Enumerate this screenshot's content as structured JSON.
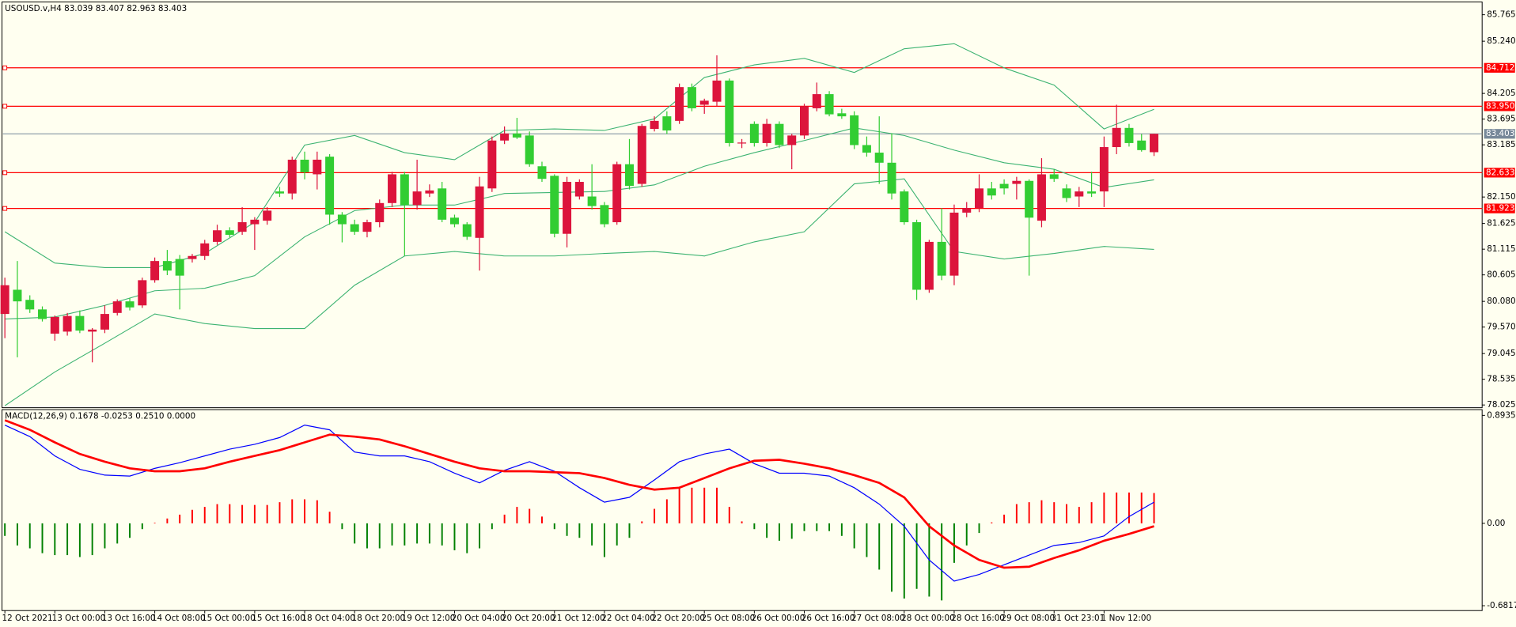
{
  "chart_data": [
    {
      "type": "candlestick",
      "title": "USOUSD.v,H4  83.039 83.407 82.963 83.403",
      "categories": [
        "12 Oct 2021",
        null,
        null,
        null,
        "13 Oct 00:00",
        null,
        null,
        null,
        "13 Oct 16:00",
        null,
        null,
        null,
        "14 Oct 08:00",
        null,
        null,
        null,
        "15 Oct 00:00",
        null,
        null,
        null,
        "15 Oct 16:00",
        null,
        null,
        null,
        "18 Oct 04:00",
        null,
        null,
        null,
        "18 Oct 20:00",
        null,
        null,
        null,
        "19 Oct 12:00",
        null,
        null,
        null,
        "20 Oct 04:00",
        null,
        null,
        null,
        "20 Oct 20:00",
        null,
        null,
        null,
        "21 Oct 12:00",
        null,
        null,
        null,
        "22 Oct 04:00",
        null,
        null,
        null,
        "22 Oct 20:00",
        null,
        null,
        null,
        "25 Oct 08:00",
        null,
        null,
        null,
        "26 Oct 00:00",
        null,
        null,
        null,
        "26 Oct 16:00",
        null,
        null,
        null,
        "27 Oct 08:00",
        null,
        null,
        null,
        "28 Oct 00:00",
        null,
        null,
        null,
        "28 Oct 16:00",
        null,
        null,
        null,
        "29 Oct 08:00",
        null,
        null,
        null,
        "31 Oct 23:01",
        null,
        null,
        null,
        "1 Nov 12:00",
        null,
        null,
        null,
        null
      ],
      "open": [
        79.83,
        80.31,
        80.11,
        79.92,
        79.44,
        79.48,
        79.79,
        79.48,
        79.52,
        79.85,
        80.08,
        80.0,
        80.5,
        80.88,
        80.92,
        80.92,
        80.98,
        81.26,
        81.49,
        81.46,
        81.61,
        81.68,
        82.26,
        82.22,
        82.89,
        82.6,
        82.95,
        81.8,
        81.61,
        81.46,
        81.65,
        82.03,
        82.6,
        81.99,
        82.22,
        82.32,
        81.74,
        81.61,
        81.34,
        82.32,
        83.27,
        83.41,
        83.37,
        82.76,
        82.57,
        81.42,
        82.16,
        82.16,
        81.99,
        81.65,
        82.8,
        82.41,
        83.5,
        83.75,
        83.66,
        84.33,
        83.98,
        84.04,
        84.46,
        83.22,
        83.6,
        83.22,
        83.6,
        83.18,
        83.37,
        83.91,
        84.19,
        83.81,
        83.77,
        83.18,
        83.03,
        82.83,
        82.26,
        81.65,
        80.31,
        81.26,
        80.59,
        81.84,
        81.93,
        82.32,
        82.41,
        82.41,
        82.47,
        81.68,
        82.6,
        82.32,
        82.16,
        82.26,
        82.26,
        83.14,
        83.52,
        83.27,
        83.039
      ],
      "high": [
        80.55,
        80.88,
        80.2,
        79.98,
        79.8,
        79.85,
        79.9,
        79.55,
        80.0,
        80.12,
        80.15,
        80.55,
        80.95,
        81.1,
        81.0,
        81.02,
        81.3,
        81.6,
        81.55,
        81.95,
        81.75,
        81.95,
        82.35,
        82.95,
        83.05,
        83.05,
        83.0,
        81.85,
        81.7,
        81.7,
        82.1,
        82.65,
        82.65,
        82.89,
        82.4,
        82.45,
        81.8,
        81.65,
        82.55,
        83.35,
        83.55,
        83.72,
        83.45,
        82.85,
        82.6,
        82.55,
        82.5,
        82.8,
        82.05,
        82.85,
        83.3,
        83.6,
        83.75,
        83.85,
        84.4,
        84.4,
        84.1,
        84.96,
        84.5,
        83.3,
        83.65,
        83.7,
        83.65,
        83.4,
        84.0,
        84.42,
        84.25,
        83.9,
        83.85,
        83.35,
        83.75,
        83.41,
        82.3,
        81.7,
        81.3,
        81.93,
        82.0,
        82.05,
        82.6,
        82.45,
        82.5,
        82.55,
        82.5,
        82.92,
        82.7,
        82.4,
        82.35,
        82.65,
        83.35,
        83.98,
        83.6,
        83.4,
        83.407
      ],
      "low": [
        79.35,
        78.97,
        79.85,
        79.68,
        79.3,
        79.4,
        79.45,
        78.87,
        79.45,
        79.8,
        79.9,
        79.95,
        80.45,
        80.6,
        79.92,
        80.85,
        80.9,
        81.2,
        81.35,
        81.4,
        81.1,
        81.6,
        82.15,
        82.1,
        82.5,
        82.3,
        81.6,
        81.25,
        81.4,
        81.35,
        81.55,
        81.95,
        80.98,
        81.9,
        82.15,
        81.65,
        81.55,
        81.3,
        80.69,
        82.25,
        83.2,
        83.3,
        82.75,
        82.45,
        81.35,
        81.15,
        82.1,
        81.9,
        81.55,
        81.6,
        82.3,
        82.35,
        83.45,
        83.4,
        83.6,
        83.85,
        83.8,
        83.95,
        83.15,
        83.12,
        83.15,
        83.15,
        83.12,
        82.7,
        83.3,
        83.85,
        83.75,
        83.7,
        83.1,
        82.95,
        82.41,
        82.1,
        81.6,
        80.11,
        80.25,
        80.5,
        80.4,
        81.75,
        81.85,
        82.1,
        82.2,
        82.1,
        80.59,
        81.55,
        82.45,
        82.05,
        81.95,
        82.15,
        81.95,
        83.0,
        83.15,
        83.05,
        82.963
      ],
      "close": [
        80.4,
        80.08,
        79.92,
        79.73,
        79.77,
        79.79,
        79.5,
        79.52,
        79.83,
        80.08,
        79.96,
        80.5,
        80.88,
        80.69,
        80.59,
        80.98,
        81.23,
        81.49,
        81.4,
        81.65,
        81.7,
        81.88,
        82.22,
        82.89,
        82.64,
        82.89,
        81.8,
        81.61,
        81.46,
        81.65,
        82.03,
        82.6,
        81.99,
        82.26,
        82.28,
        81.7,
        81.61,
        81.36,
        82.36,
        83.27,
        83.41,
        83.33,
        82.8,
        82.51,
        81.42,
        82.45,
        82.45,
        81.97,
        81.61,
        82.8,
        82.37,
        83.56,
        83.66,
        83.47,
        84.33,
        83.91,
        84.06,
        84.46,
        83.22,
        83.23,
        83.22,
        83.6,
        83.18,
        83.37,
        83.95,
        84.19,
        83.79,
        83.75,
        83.18,
        83.03,
        82.83,
        82.22,
        81.65,
        80.31,
        81.26,
        80.59,
        81.84,
        81.93,
        82.32,
        82.18,
        82.32,
        82.47,
        81.74,
        82.6,
        82.51,
        82.13,
        82.26,
        82.22,
        83.14,
        83.52,
        83.22,
        83.08,
        83.403
      ],
      "up_color": "#dc143c",
      "down_color": "#32cd32",
      "bands": {
        "color": "#3cb371",
        "x": [
          0,
          4,
          8,
          12,
          16,
          20,
          24,
          28,
          32,
          36,
          40,
          44,
          48,
          52,
          56,
          60,
          64,
          68,
          72,
          76,
          80,
          84,
          88,
          92
        ],
        "series": [
          {
            "values": [
              81.46,
              80.84,
              80.75,
              80.75,
              81.03,
              81.65,
              83.18,
              83.37,
              83.03,
              82.89,
              83.47,
              83.5,
              83.47,
              83.7,
              84.52,
              84.77,
              84.9,
              84.62,
              85.09,
              85.19,
              84.71,
              84.37,
              83.5,
              83.89
            ]
          },
          {
            "values": [
              79.73,
              79.77,
              80.0,
              80.29,
              80.34,
              80.59,
              81.36,
              81.88,
              81.99,
              81.99,
              82.22,
              82.24,
              82.26,
              82.39,
              82.76,
              83.03,
              83.27,
              83.52,
              83.37,
              83.08,
              82.83,
              82.7,
              82.34,
              82.49
            ]
          },
          {
            "values": [
              78.01,
              78.68,
              79.25,
              79.83,
              79.64,
              79.54,
              79.54,
              80.4,
              80.98,
              81.07,
              80.98,
              80.98,
              81.03,
              81.07,
              80.98,
              81.26,
              81.46,
              82.41,
              82.51,
              81.07,
              80.92,
              81.03,
              81.17,
              81.11
            ]
          }
        ]
      },
      "levels": [
        84.712,
        {
          "value": 83.95,
          "label": "83.950"
        },
        82.633,
        81.923
      ],
      "level_color": "#ff0000",
      "bid": 83.403,
      "bid_color": "#778899",
      "ylim": [
        77.99,
        86.0
      ],
      "yticks": [
        85.765,
        {
          "value": 85.24,
          "label": "85.240"
        },
        84.205,
        83.695,
        83.185,
        {
          "value": 82.15,
          "label": "82.150"
        },
        81.625,
        81.115,
        80.605,
        {
          "value": 80.08,
          "label": "80.080"
        },
        {
          "value": 79.57,
          "label": "79.570"
        },
        79.045,
        78.535,
        78.025
      ]
    },
    {
      "type": "macd",
      "title": "MACD(12,26,9) 0.1678 -0.0253 0.2510 0.0000",
      "histogram": [
        -0.104,
        -0.183,
        -0.207,
        -0.247,
        -0.263,
        -0.263,
        -0.279,
        -0.263,
        -0.207,
        -0.167,
        -0.12,
        -0.048,
        0.005,
        0.04,
        0.072,
        0.112,
        0.136,
        0.159,
        0.159,
        0.152,
        0.152,
        0.152,
        0.175,
        0.199,
        0.199,
        0.191,
        0.096,
        -0.048,
        -0.167,
        -0.207,
        -0.207,
        -0.183,
        -0.183,
        -0.167,
        -0.167,
        -0.183,
        -0.223,
        -0.247,
        -0.207,
        -0.048,
        0.072,
        0.136,
        0.12,
        0.056,
        -0.048,
        -0.104,
        -0.12,
        -0.183,
        -0.279,
        -0.183,
        -0.12,
        0.016,
        0.12,
        0.199,
        0.295,
        0.295,
        0.295,
        0.295,
        0.136,
        0.016,
        -0.048,
        -0.12,
        -0.144,
        -0.128,
        -0.064,
        -0.064,
        -0.064,
        -0.104,
        -0.207,
        -0.279,
        -0.383,
        -0.566,
        -0.622,
        -0.542,
        -0.606,
        -0.638,
        -0.327,
        -0.183,
        -0.08,
        0.008,
        0.072,
        0.159,
        0.175,
        0.191,
        0.175,
        0.159,
        0.136,
        0.175,
        0.255,
        0.255,
        0.255,
        0.255,
        0.251
      ],
      "pos_color": "#ff0000",
      "neg_color": "#008000",
      "x": [
        0,
        2,
        4,
        6,
        8,
        10,
        12,
        14,
        16,
        18,
        20,
        22,
        24,
        26,
        28,
        30,
        32,
        34,
        36,
        38,
        40,
        42,
        44,
        46,
        48,
        50,
        52,
        54,
        56,
        58,
        60,
        62,
        64,
        66,
        68,
        70,
        72,
        74,
        76,
        78,
        80,
        82,
        84,
        86,
        88,
        90,
        92
      ],
      "series": [
        {
          "color": "#0000ff",
          "values": [
            0.813,
            0.718,
            0.558,
            0.447,
            0.399,
            0.391,
            0.455,
            0.502,
            0.558,
            0.614,
            0.654,
            0.71,
            0.813,
            0.774,
            0.59,
            0.558,
            0.558,
            0.51,
            0.415,
            0.335,
            0.439,
            0.51,
            0.431,
            0.295,
            0.175,
            0.215,
            0.359,
            0.51,
            0.574,
            0.614,
            0.494,
            0.415,
            0.415,
            0.391,
            0.295,
            0.159,
            -0.024,
            -0.303,
            -0.478,
            -0.423,
            -0.343,
            -0.263,
            -0.183,
            -0.159,
            -0.104,
            0.056,
            0.175
          ]
        },
        {
          "color": "#ff0000",
          "values": [
            0.853,
            0.774,
            0.67,
            0.574,
            0.51,
            0.455,
            0.431,
            0.431,
            0.455,
            0.51,
            0.558,
            0.606,
            0.67,
            0.734,
            0.718,
            0.694,
            0.638,
            0.574,
            0.51,
            0.455,
            0.431,
            0.431,
            0.423,
            0.415,
            0.375,
            0.319,
            0.279,
            0.295,
            0.375,
            0.455,
            0.518,
            0.526,
            0.494,
            0.455,
            0.399,
            0.335,
            0.215,
            -0.024,
            -0.183,
            -0.303,
            -0.367,
            -0.359,
            -0.287,
            -0.223,
            -0.144,
            -0.088,
            -0.024
          ]
        }
      ],
      "ylim": [
        -0.722,
        0.941
      ],
      "yticks": [
        0.8935,
        {
          "value": 0,
          "label": "0.00"
        },
        -0.6817
      ]
    }
  ]
}
